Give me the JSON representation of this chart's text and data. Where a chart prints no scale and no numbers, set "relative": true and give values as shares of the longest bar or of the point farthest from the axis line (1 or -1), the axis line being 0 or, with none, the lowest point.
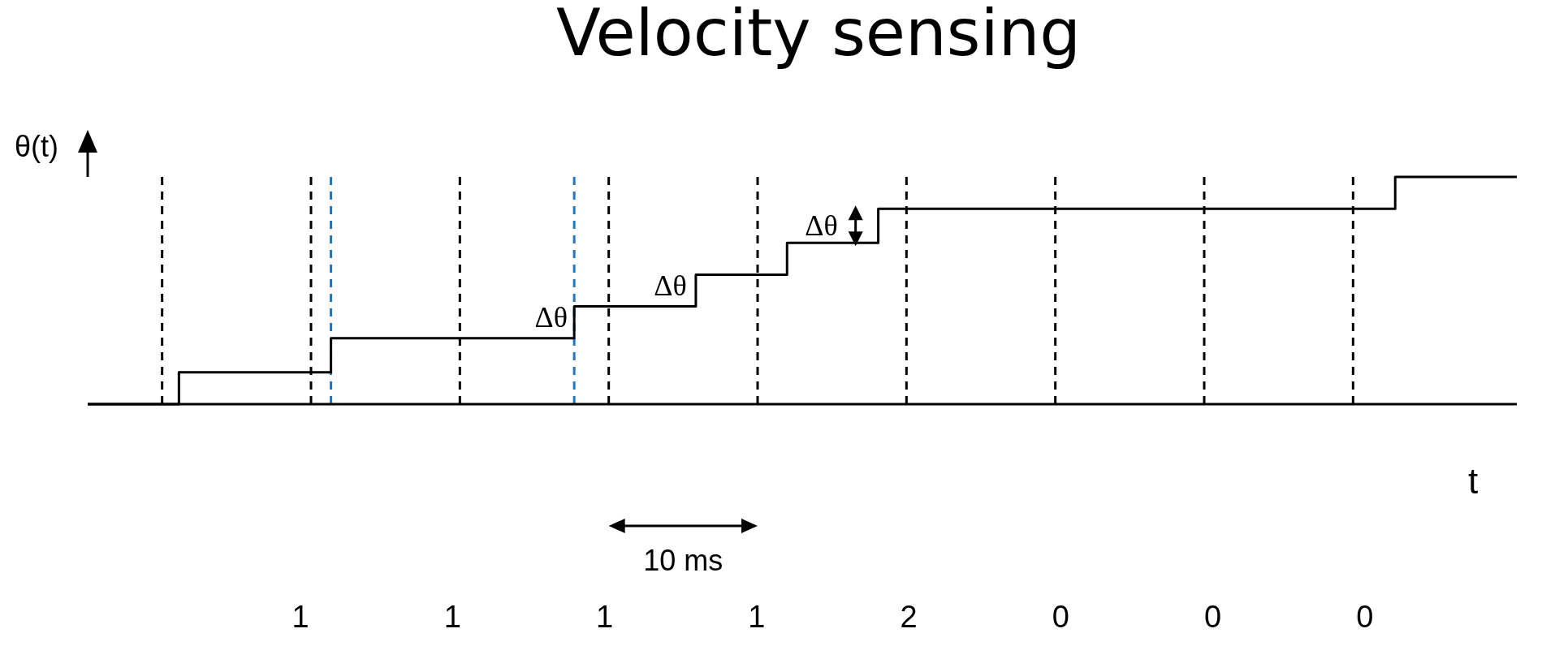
{
  "chart_data": {
    "type": "step",
    "title": "Velocity sensing",
    "xlabel": "t",
    "ylabel": "θ(t)",
    "relative": true,
    "categories": [
      null,
      null,
      null,
      null,
      null,
      null,
      null,
      "1",
      null,
      null,
      null,
      null,
      "1",
      null,
      null,
      null,
      null,
      "1",
      null,
      null,
      null,
      null,
      "1",
      null,
      null,
      null,
      null,
      "2",
      null,
      null,
      null,
      null,
      "0",
      null,
      null,
      null,
      null,
      "0",
      null,
      null,
      null,
      null,
      "0",
      null,
      null,
      null,
      null,
      null
    ],
    "series": [
      {
        "color": "#000000",
        "values": [
          0,
          0,
          0,
          0.14,
          0.14,
          0.14,
          0.14,
          0.14,
          0.29,
          0.29,
          0.29,
          0.29,
          0.29,
          0.29,
          0.29,
          0.29,
          0.43,
          0.43,
          0.43,
          0.43,
          0.57,
          0.57,
          0.57,
          0.71,
          0.71,
          0.71,
          0.86,
          0.86,
          0.86,
          0.86,
          0.86,
          0.86,
          0.86,
          0.86,
          0.86,
          0.86,
          0.86,
          0.86,
          0.86,
          0.86,
          0.86,
          0.86,
          0.86,
          1,
          1,
          1,
          1,
          1
        ]
      }
    ],
    "grid": "x",
    "legend": false,
    "line_style": "solid",
    "annotations": [
      "10 ms",
      "Δθ",
      "Δθ",
      "Δθ"
    ]
  }
}
